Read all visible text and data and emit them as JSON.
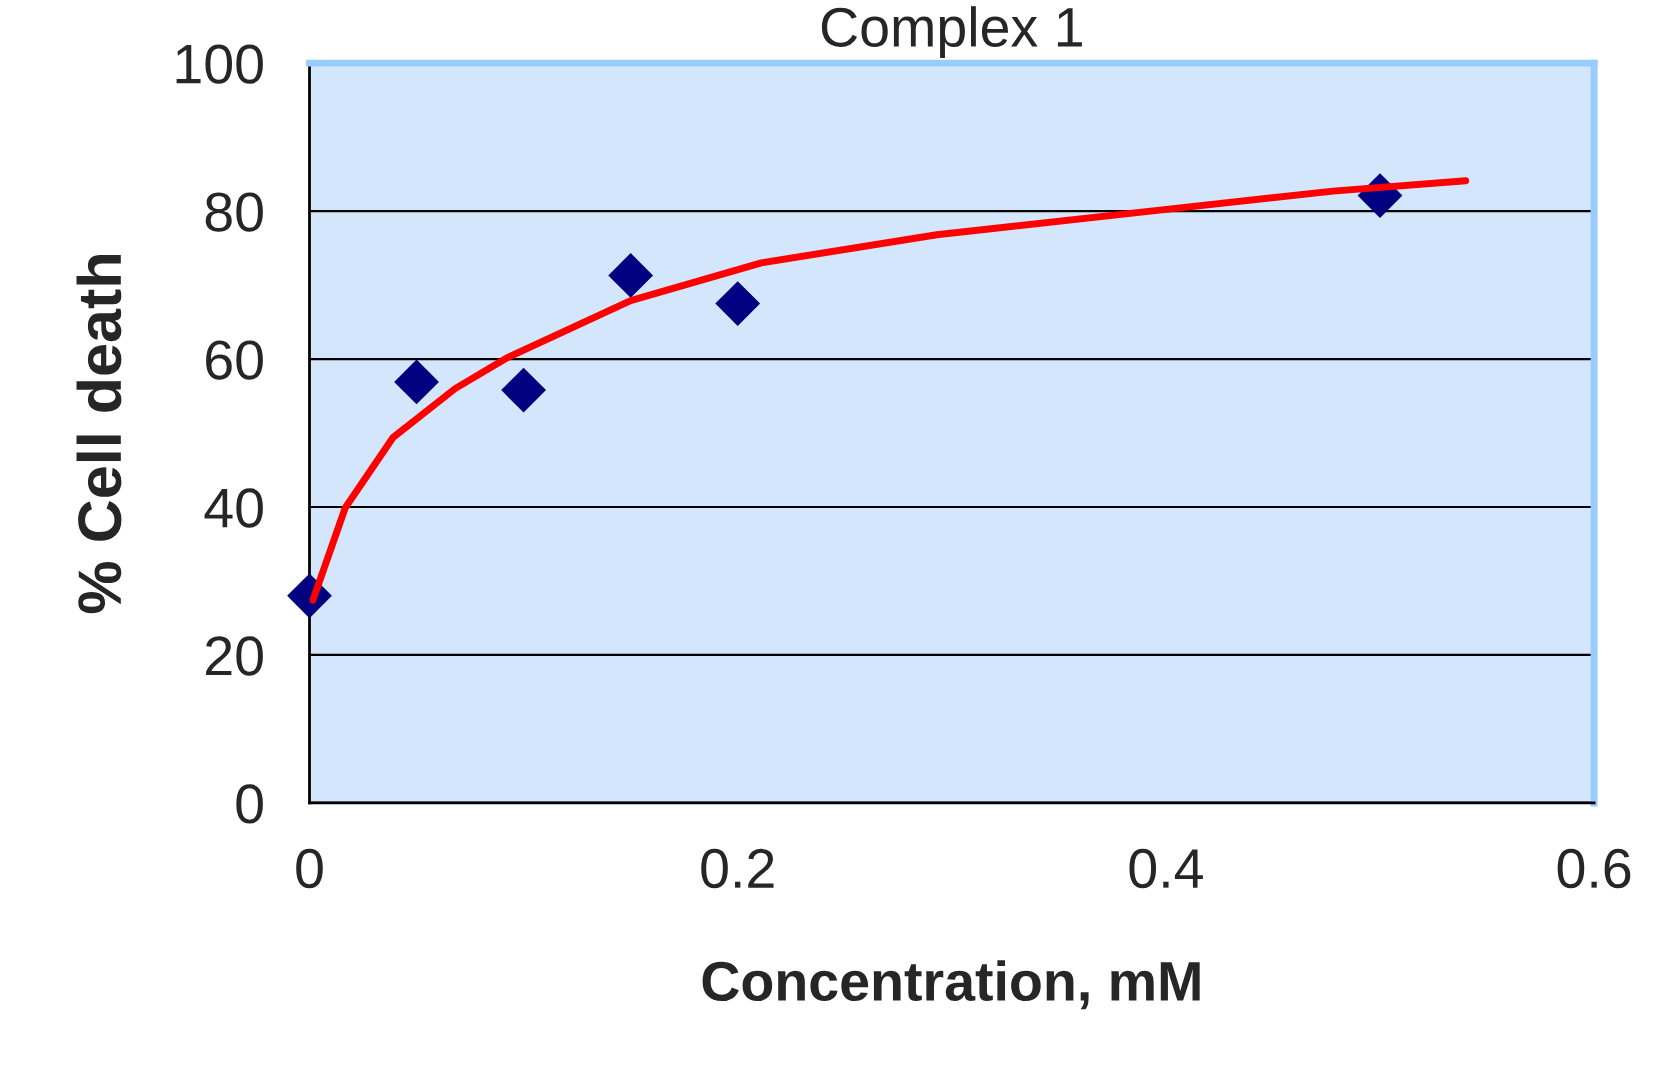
{
  "chart_data": {
    "type": "scatter",
    "title": "Complex 1",
    "xlabel": "Concentration, mM",
    "ylabel": "% Cell death",
    "series": [
      {
        "color": "#000080",
        "marker": "diamond",
        "x": [
          0,
          0.05,
          0.1,
          0.15,
          0.2,
          0.5
        ],
        "values": [
          28,
          56.9,
          55.8,
          71.3,
          67.5,
          82.1
        ]
      },
      {
        "type": "line",
        "color": "#ff0000",
        "marker": "none",
        "line_style": "solid",
        "x": [
          0.0016,
          0.0167,
          0.039,
          0.068,
          0.0925,
          0.15,
          0.211,
          0.293,
          0.396,
          0.478,
          0.54
        ],
        "values": [
          27.4,
          39.9,
          49.4,
          56.0,
          60.2,
          67.9,
          73.0,
          76.8,
          80.1,
          82.7,
          84.1
        ]
      }
    ],
    "xlim": [
      0,
      0.6
    ],
    "xticks": [
      0,
      0.2,
      0.4,
      0.6
    ],
    "ylim": [
      0,
      100
    ],
    "yticks": [
      0,
      20,
      40,
      60,
      80,
      100
    ],
    "grid": "y",
    "legend": false
  }
}
